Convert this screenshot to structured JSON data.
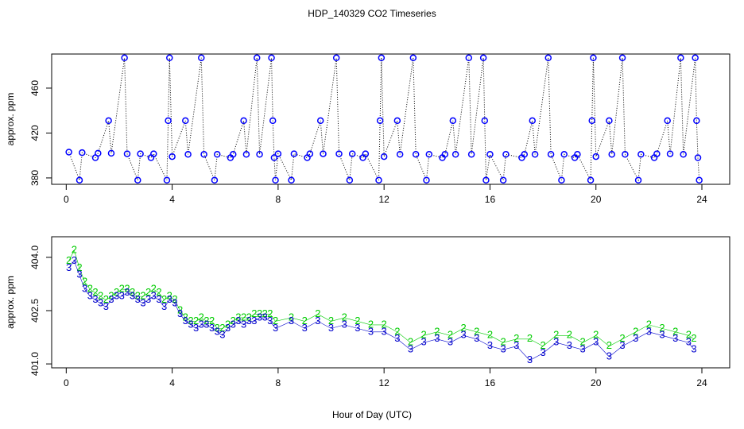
{
  "chart_data": [
    {
      "type": "scatter",
      "title": "HDP_140329  CO2 Timeseries",
      "ylabel": "approx. ppm",
      "xlim": [
        -0.55,
        25.05
      ],
      "xticks": [
        0,
        4,
        8,
        12,
        16,
        20,
        24
      ],
      "ylim": [
        374.3,
        490.4
      ],
      "yticks": [
        380,
        420,
        460
      ],
      "series": [
        {
          "color": "#0000ff",
          "x": [
            0.1,
            0.5,
            0.6,
            1.1,
            1.2,
            1.6,
            1.7,
            2.2,
            2.3,
            2.7,
            2.8,
            3.2,
            3.3,
            3.8,
            3.85,
            3.9,
            4.0,
            4.5,
            4.6,
            5.1,
            5.2,
            5.6,
            5.7,
            6.2,
            6.3,
            6.7,
            6.8,
            7.2,
            7.3,
            7.75,
            7.8,
            7.85,
            7.9,
            8.0,
            8.5,
            8.6,
            9.1,
            9.2,
            9.6,
            9.7,
            10.2,
            10.3,
            10.7,
            10.8,
            11.2,
            11.3,
            11.8,
            11.85,
            11.9,
            12.0,
            12.5,
            12.6,
            13.1,
            13.2,
            13.6,
            13.7,
            14.2,
            14.3,
            14.6,
            14.7,
            15.2,
            15.3,
            15.75,
            15.8,
            15.85,
            16.0,
            16.5,
            16.6,
            17.2,
            17.3,
            17.6,
            17.7,
            18.2,
            18.3,
            18.7,
            18.8,
            19.2,
            19.3,
            19.8,
            19.85,
            19.9,
            20.0,
            20.5,
            20.6,
            21.0,
            21.1,
            21.6,
            21.7,
            22.2,
            22.3,
            22.7,
            22.8,
            23.2,
            23.3,
            23.75,
            23.8,
            23.85,
            23.9
          ],
          "values": [
            403,
            378,
            402.5,
            398,
            402,
            431,
            402,
            487,
            401.5,
            378,
            401.5,
            398,
            401.5,
            378,
            431,
            487,
            399,
            431,
            401,
            487,
            401,
            378,
            401,
            398,
            401,
            431,
            401,
            487,
            401,
            487,
            431,
            398,
            378,
            401.5,
            378,
            401.5,
            398,
            401.5,
            431,
            401.5,
            487,
            401.5,
            378,
            401.5,
            398,
            401.5,
            378,
            431,
            487,
            399,
            431,
            401,
            487,
            401,
            378,
            401,
            398,
            401,
            431,
            401,
            487,
            401,
            487,
            431,
            378,
            401,
            378,
            401,
            398,
            401,
            431,
            401,
            487,
            401,
            378,
            401,
            398,
            401,
            378,
            431,
            487,
            399,
            431,
            401,
            487,
            401,
            378,
            401,
            398,
            401.5,
            431,
            401.5,
            487,
            401,
            487,
            431,
            398,
            378
          ]
        }
      ]
    },
    {
      "type": "scatter",
      "xlabel": "Hour of Day (UTC)",
      "ylabel": "approx. ppm",
      "xlim": [
        -0.55,
        25.05
      ],
      "xticks": [
        0,
        4,
        8,
        12,
        16,
        20,
        24
      ],
      "ylim": [
        400.89,
        404.58
      ],
      "yticks": [
        {
          "value": 401.0,
          "label": "401.0"
        },
        {
          "value": 402.5,
          "label": "402.5"
        },
        {
          "value": 404.0,
          "label": "404.0"
        }
      ],
      "x": [
        0.1,
        0.3,
        0.5,
        0.7,
        0.9,
        1.1,
        1.3,
        1.5,
        1.7,
        1.9,
        2.1,
        2.3,
        2.5,
        2.7,
        2.9,
        3.1,
        3.3,
        3.5,
        3.7,
        3.9,
        4.1,
        4.3,
        4.5,
        4.7,
        4.9,
        5.1,
        5.3,
        5.5,
        5.7,
        5.9,
        6.1,
        6.3,
        6.5,
        6.7,
        6.9,
        7.1,
        7.3,
        7.5,
        7.7,
        7.9,
        8.5,
        9.0,
        9.5,
        10.0,
        10.5,
        11.0,
        11.5,
        12.0,
        12.5,
        13.0,
        13.5,
        14.0,
        14.5,
        15.0,
        15.5,
        16.0,
        16.5,
        17.0,
        17.5,
        18.0,
        18.5,
        19.0,
        19.5,
        20.0,
        20.5,
        21.0,
        21.5,
        22.0,
        22.5,
        23.0,
        23.5,
        23.7
      ],
      "series": [
        {
          "marker": "2",
          "color": "#00cc00",
          "values": [
            403.9,
            404.2,
            403.7,
            403.3,
            403.1,
            403.0,
            402.9,
            402.8,
            402.9,
            403.0,
            403.1,
            403.1,
            403.0,
            402.9,
            402.9,
            403.0,
            403.1,
            403.0,
            402.8,
            402.9,
            402.8,
            402.5,
            402.3,
            402.2,
            402.2,
            402.3,
            402.2,
            402.2,
            402.0,
            402.0,
            402.1,
            402.2,
            402.3,
            402.3,
            402.3,
            402.4,
            402.4,
            402.4,
            402.4,
            402.2,
            402.3,
            402.2,
            402.4,
            402.2,
            402.3,
            402.2,
            402.1,
            402.1,
            401.9,
            401.6,
            401.8,
            401.9,
            401.8,
            402.0,
            401.9,
            401.8,
            401.6,
            401.7,
            401.7,
            401.5,
            401.8,
            401.8,
            401.6,
            401.8,
            401.5,
            401.7,
            401.9,
            402.1,
            402.0,
            401.9,
            401.8,
            401.7
          ]
        },
        {
          "marker": "3",
          "color": "#0000cc",
          "values": [
            403.7,
            403.9,
            403.5,
            403.1,
            402.9,
            402.8,
            402.7,
            402.6,
            402.8,
            402.9,
            402.9,
            403.0,
            402.9,
            402.8,
            402.7,
            402.8,
            402.9,
            402.8,
            402.6,
            402.8,
            402.7,
            402.4,
            402.2,
            402.1,
            402.0,
            402.1,
            402.1,
            402.0,
            401.9,
            401.8,
            402.0,
            402.1,
            402.2,
            402.1,
            402.2,
            402.2,
            402.3,
            402.3,
            402.2,
            402.0,
            402.2,
            402.0,
            402.2,
            402.0,
            402.1,
            402.0,
            401.9,
            401.9,
            401.7,
            401.4,
            401.6,
            401.7,
            401.6,
            401.8,
            401.7,
            401.5,
            401.4,
            401.5,
            401.1,
            401.3,
            401.6,
            401.5,
            401.4,
            401.6,
            401.2,
            401.5,
            401.7,
            401.9,
            401.8,
            401.7,
            401.6,
            401.4
          ]
        }
      ]
    }
  ]
}
